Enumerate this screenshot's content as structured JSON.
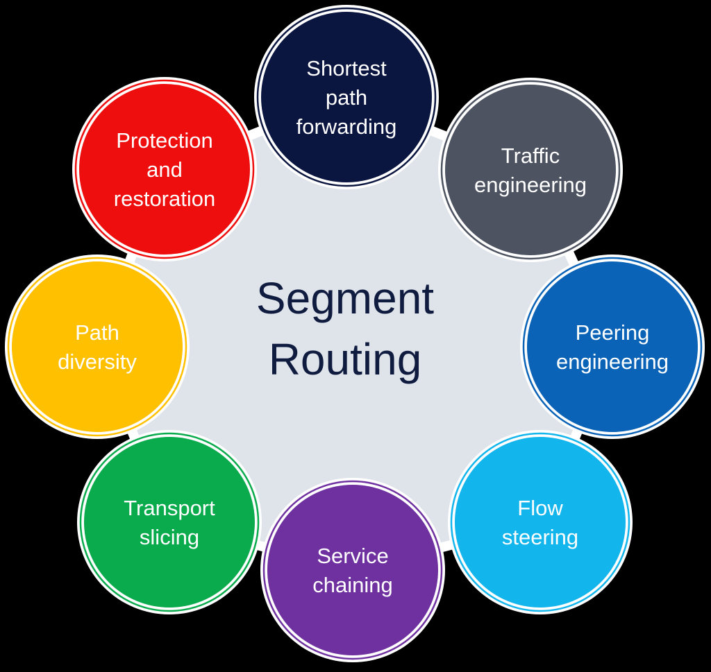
{
  "center": {
    "lines": [
      "Segment",
      "Routing"
    ],
    "color": "#0f1c3f",
    "fill": "#dfe3ea"
  },
  "nodes": [
    {
      "id": "shortest-path-forwarding",
      "lines": [
        "Shortest",
        "path",
        "forwarding"
      ],
      "color": "#0b1640"
    },
    {
      "id": "traffic-engineering",
      "lines": [
        "Traffic",
        "engineering"
      ],
      "color": "#4d5360"
    },
    {
      "id": "peering-engineering",
      "lines": [
        "Peering",
        "engineering"
      ],
      "color": "#0a63b6"
    },
    {
      "id": "flow-steering",
      "lines": [
        "Flow",
        "steering"
      ],
      "color": "#12b5ec"
    },
    {
      "id": "service-chaining",
      "lines": [
        "Service",
        "chaining"
      ],
      "color": "#7031a0"
    },
    {
      "id": "transport-slicing",
      "lines": [
        "Transport",
        "slicing"
      ],
      "color": "#0aab4d"
    },
    {
      "id": "path-diversity",
      "lines": [
        "Path",
        "diversity"
      ],
      "color": "#ffc000"
    },
    {
      "id": "protection-and-restoration",
      "lines": [
        "Protection",
        "and",
        "restoration"
      ],
      "color": "#ee0e0e"
    }
  ]
}
